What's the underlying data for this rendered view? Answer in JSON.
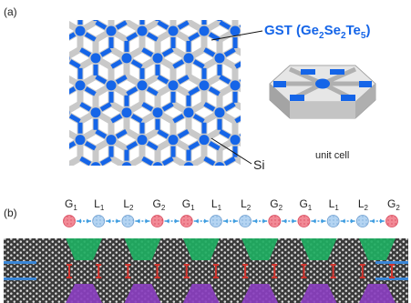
{
  "panel_a": {
    "label": "(a)",
    "gst_label_main": "GST (Ge",
    "gst_sub_1": "2",
    "gst_mid_1": "Se",
    "gst_sub_2": "2",
    "gst_mid_2": "Te",
    "gst_sub_3": "5",
    "gst_close": ")",
    "si_label": "Si",
    "unit_cell_label": "unit cell",
    "colors": {
      "gst": "#1565e8",
      "si": "#c9c9c9",
      "si_dark": "#9a9a9a",
      "background": "#ffffff"
    }
  },
  "panel_b": {
    "label": "(b)",
    "chain": [
      {
        "letter": "G",
        "sub": "1",
        "kind": "gain"
      },
      {
        "letter": "L",
        "sub": "1",
        "kind": "loss"
      },
      {
        "letter": "L",
        "sub": "2",
        "kind": "loss"
      },
      {
        "letter": "G",
        "sub": "2",
        "kind": "gain"
      },
      {
        "letter": "G",
        "sub": "1",
        "kind": "gain"
      },
      {
        "letter": "L",
        "sub": "1",
        "kind": "loss"
      },
      {
        "letter": "L",
        "sub": "2",
        "kind": "loss"
      },
      {
        "letter": "G",
        "sub": "2",
        "kind": "gain"
      },
      {
        "letter": "G",
        "sub": "1",
        "kind": "gain"
      },
      {
        "letter": "L",
        "sub": "1",
        "kind": "loss"
      },
      {
        "letter": "L",
        "sub": "2",
        "kind": "loss"
      },
      {
        "letter": "G",
        "sub": "2",
        "kind": "gain"
      }
    ],
    "colors": {
      "gain": "#f06a7a",
      "loss": "#9ec4ec",
      "coupling": "#3f9de0",
      "green": "#1fae62",
      "purple": "#8a3fbf",
      "red": "#d2352e",
      "blue": "#3a86d6"
    }
  }
}
